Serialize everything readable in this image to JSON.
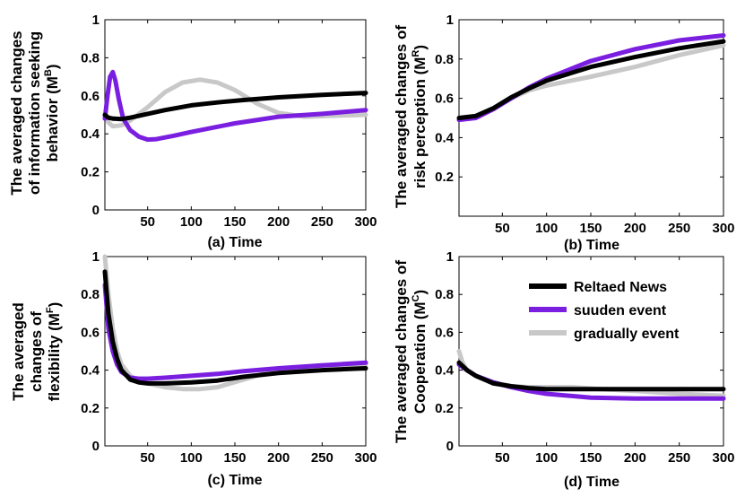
{
  "chart_data": [
    {
      "type": "line",
      "panel_id": "a",
      "xlabel": "(a) Time",
      "ylabel_lines": [
        "The averaged changes",
        "of information seeking",
        "behavior (M",
        "B",
        ")"
      ],
      "xlim": [
        1,
        300
      ],
      "ylim": [
        0,
        1
      ],
      "xticks": [
        50,
        100,
        150,
        200,
        250,
        300
      ],
      "yticks": [
        0,
        0.2,
        0.4,
        0.6,
        0.8,
        1
      ],
      "ytick_labels": [
        "0",
        "0.2",
        "0.4",
        "0.6",
        "0.8",
        "1"
      ],
      "series": [
        {
          "name": "Reltaed News",
          "x": [
            1,
            5,
            10,
            20,
            30,
            50,
            70,
            100,
            130,
            160,
            200,
            250,
            300
          ],
          "y": [
            0.5,
            0.485,
            0.48,
            0.478,
            0.485,
            0.505,
            0.525,
            0.55,
            0.565,
            0.578,
            0.592,
            0.605,
            0.615
          ]
        },
        {
          "name": "suuden event",
          "x": [
            1,
            4,
            7,
            10,
            13,
            17,
            22,
            30,
            40,
            50,
            60,
            80,
            100,
            150,
            200,
            250,
            300
          ],
          "y": [
            0.48,
            0.6,
            0.7,
            0.725,
            0.68,
            0.58,
            0.48,
            0.42,
            0.385,
            0.37,
            0.372,
            0.39,
            0.41,
            0.455,
            0.49,
            0.505,
            0.525
          ]
        },
        {
          "name": "gradually event",
          "x": [
            1,
            5,
            10,
            20,
            30,
            50,
            70,
            90,
            110,
            130,
            150,
            175,
            200,
            230,
            260,
            300
          ],
          "y": [
            0.5,
            0.46,
            0.44,
            0.445,
            0.47,
            0.54,
            0.62,
            0.67,
            0.685,
            0.67,
            0.63,
            0.56,
            0.51,
            0.49,
            0.495,
            0.5
          ]
        }
      ]
    },
    {
      "type": "line",
      "panel_id": "b",
      "xlabel": "(b) Time",
      "ylabel_lines": [
        "The averaged changes of",
        "risk perception (M",
        "R",
        ")"
      ],
      "xlim": [
        1,
        300
      ],
      "ylim": [
        0,
        1
      ],
      "xticks": [
        50,
        100,
        150,
        200,
        250,
        300
      ],
      "yticks": [
        0.2,
        0.4,
        0.6,
        0.8,
        1
      ],
      "ytick_labels": [
        "0.2",
        "0.4",
        "0.6",
        "0.8",
        "1"
      ],
      "series": [
        {
          "name": "Reltaed News",
          "x": [
            1,
            20,
            40,
            60,
            80,
            100,
            150,
            200,
            250,
            300
          ],
          "y": [
            0.5,
            0.51,
            0.55,
            0.605,
            0.65,
            0.69,
            0.76,
            0.81,
            0.855,
            0.89
          ]
        },
        {
          "name": "suuden event",
          "x": [
            1,
            20,
            40,
            60,
            80,
            100,
            150,
            200,
            250,
            300
          ],
          "y": [
            0.49,
            0.5,
            0.545,
            0.6,
            0.655,
            0.7,
            0.79,
            0.85,
            0.895,
            0.92
          ]
        },
        {
          "name": "gradually event",
          "x": [
            1,
            20,
            40,
            60,
            80,
            100,
            150,
            200,
            250,
            300
          ],
          "y": [
            0.5,
            0.51,
            0.55,
            0.6,
            0.64,
            0.665,
            0.71,
            0.76,
            0.82,
            0.87
          ]
        }
      ]
    },
    {
      "type": "line",
      "panel_id": "c",
      "xlabel": "(c) Time",
      "ylabel_lines": [
        "The averaged",
        "changes of",
        "flexibility  (M",
        "F",
        ")"
      ],
      "xlim": [
        1,
        300
      ],
      "ylim": [
        0,
        1
      ],
      "xticks": [
        50,
        100,
        150,
        200,
        250,
        300
      ],
      "yticks": [
        0,
        0.2,
        0.4,
        0.6,
        0.8,
        1
      ],
      "ytick_labels": [
        "0",
        "0.2",
        "0.4",
        "0.6",
        "0.8",
        "1"
      ],
      "series": [
        {
          "name": "Reltaed News",
          "x": [
            1,
            5,
            10,
            15,
            20,
            30,
            40,
            50,
            70,
            100,
            130,
            160,
            200,
            250,
            300
          ],
          "y": [
            0.92,
            0.7,
            0.55,
            0.46,
            0.4,
            0.35,
            0.335,
            0.33,
            0.33,
            0.335,
            0.345,
            0.365,
            0.385,
            0.4,
            0.41
          ]
        },
        {
          "name": "suuden event",
          "x": [
            1,
            5,
            10,
            15,
            20,
            30,
            40,
            50,
            70,
            100,
            130,
            160,
            200,
            250,
            300
          ],
          "y": [
            0.85,
            0.62,
            0.5,
            0.43,
            0.39,
            0.36,
            0.355,
            0.355,
            0.36,
            0.37,
            0.38,
            0.395,
            0.41,
            0.425,
            0.44
          ]
        },
        {
          "name": "gradually event",
          "x": [
            1,
            5,
            10,
            15,
            20,
            30,
            40,
            50,
            70,
            90,
            110,
            130,
            160,
            200,
            250,
            300
          ],
          "y": [
            1.0,
            0.8,
            0.62,
            0.5,
            0.43,
            0.37,
            0.345,
            0.33,
            0.31,
            0.3,
            0.3,
            0.31,
            0.35,
            0.405,
            0.425,
            0.43
          ]
        }
      ]
    },
    {
      "type": "line",
      "panel_id": "d",
      "xlabel": "(d) Time",
      "ylabel_lines": [
        "The averaged changes of",
        "Cooperation (M",
        "C",
        ")"
      ],
      "xlim": [
        1,
        300
      ],
      "ylim": [
        0,
        1
      ],
      "xticks": [
        50,
        100,
        150,
        200,
        250,
        300
      ],
      "yticks": [
        0,
        0.2,
        0.4,
        0.6,
        0.8,
        1
      ],
      "ytick_labels": [
        "0",
        "0.2",
        "0.4",
        "0.6",
        "0.8",
        "1"
      ],
      "series": [
        {
          "name": "Reltaed News",
          "x": [
            1,
            10,
            20,
            40,
            60,
            80,
            100,
            150,
            200,
            250,
            300
          ],
          "y": [
            0.44,
            0.4,
            0.37,
            0.33,
            0.315,
            0.305,
            0.3,
            0.3,
            0.3,
            0.3,
            0.3
          ]
        },
        {
          "name": "suuden event",
          "x": [
            1,
            10,
            20,
            40,
            60,
            80,
            100,
            150,
            200,
            250,
            300
          ],
          "y": [
            0.43,
            0.4,
            0.37,
            0.335,
            0.31,
            0.29,
            0.275,
            0.255,
            0.25,
            0.25,
            0.25
          ]
        },
        {
          "name": "gradually event",
          "x": [
            1,
            5,
            10,
            20,
            40,
            60,
            80,
            100,
            130,
            160,
            200,
            250,
            300
          ],
          "y": [
            0.5,
            0.44,
            0.4,
            0.37,
            0.335,
            0.315,
            0.31,
            0.31,
            0.31,
            0.3,
            0.29,
            0.275,
            0.265
          ]
        }
      ],
      "legend_position": "top-right"
    }
  ],
  "legend": {
    "position": "top-right of panel d",
    "items": [
      {
        "label": "Reltaed News",
        "color": "#000000"
      },
      {
        "label": "suuden event",
        "color": "#7a1ee0"
      },
      {
        "label": "gradually event",
        "color": "#c8c8c8"
      }
    ]
  },
  "colors": {
    "Reltaed News": "#000000",
    "suuden event": "#7a1ee0",
    "gradually event": "#c8c8c8"
  },
  "line_order": [
    "gradually event",
    "suuden event",
    "Reltaed News"
  ]
}
